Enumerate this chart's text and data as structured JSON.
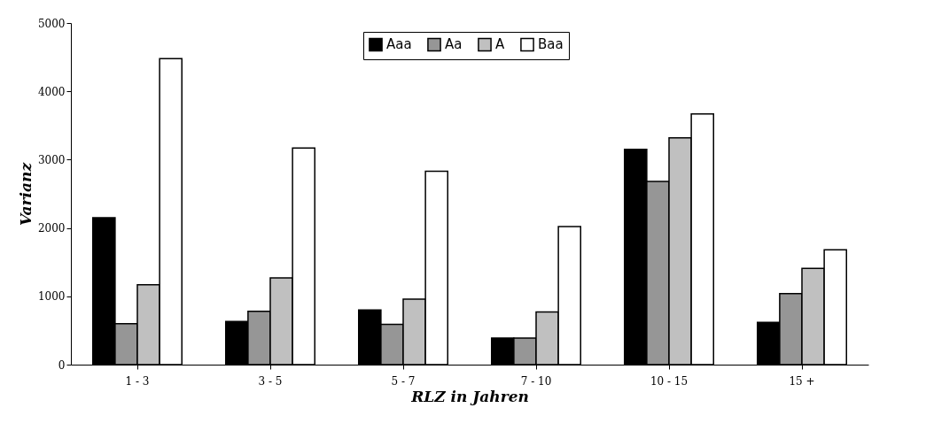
{
  "chart_data": {
    "type": "bar",
    "xlabel": "RLZ in Jahren",
    "ylabel": "Varianz",
    "categories": [
      "1 - 3",
      "3 - 5",
      "5 - 7",
      "7 - 10",
      "10 - 15",
      "15 +"
    ],
    "series": [
      {
        "name": "Aaa",
        "color": "#000000",
        "values": [
          2150,
          630,
          800,
          390,
          3150,
          620
        ]
      },
      {
        "name": "Aa",
        "color": "#969696",
        "values": [
          600,
          780,
          590,
          390,
          2680,
          1040
        ]
      },
      {
        "name": "A",
        "color": "#c0c0c0",
        "values": [
          1170,
          1270,
          960,
          770,
          3320,
          1410
        ]
      },
      {
        "name": "Baa",
        "color": "#ffffff",
        "values": [
          4480,
          3170,
          2830,
          2020,
          3670,
          1680
        ]
      }
    ],
    "ylim": [
      0,
      5000
    ],
    "yticks": [
      0,
      1000,
      2000,
      3000,
      4000,
      5000
    ],
    "grid": false,
    "legend": "top"
  }
}
